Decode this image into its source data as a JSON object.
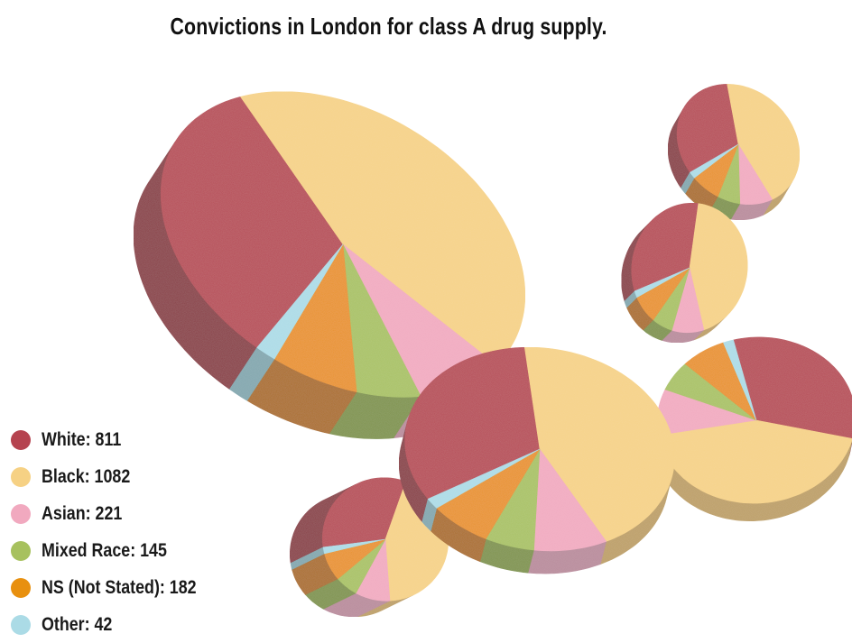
{
  "chart_data": {
    "type": "pie",
    "title": "Convictions in London for class A drug supply.",
    "style": "3d-pie",
    "legend_position": "bottom-left",
    "series": [
      {
        "name": "White",
        "label": "White: 811",
        "value": 811,
        "color": "#b5434f",
        "side_color": "#86303a"
      },
      {
        "name": "Black",
        "label": "Black: 1082",
        "value": 1082,
        "color": "#f6d184",
        "side_color": "#bc9d60"
      },
      {
        "name": "Asian",
        "label": "Asian: 221",
        "value": 221,
        "color": "#f1a9bf",
        "side_color": "#b8889a"
      },
      {
        "name": "Mixed Race",
        "label": "Mixed Race: 145",
        "value": 145,
        "color": "#a7c15e",
        "side_color": "#7b9143"
      },
      {
        "name": "NS (Not Stated)",
        "label": "NS (Not Stated): 182",
        "value": 182,
        "color": "#e8900f",
        "side_color": "#a9690d"
      },
      {
        "name": "Other",
        "label": "Other: 42",
        "value": 42,
        "color": "#abdbe6",
        "side_color": "#7fa5ad"
      }
    ],
    "pies": [
      {
        "name": "main",
        "values": [
          811,
          1082,
          221,
          145,
          182,
          42
        ]
      },
      {
        "name": "top-right",
        "values": [
          811,
          1082,
          221,
          145,
          182,
          42
        ]
      },
      {
        "name": "middle-right",
        "values": [
          811,
          1082,
          221,
          145,
          182,
          42
        ]
      },
      {
        "name": "center",
        "values": [
          811,
          1082,
          221,
          145,
          182,
          42
        ]
      },
      {
        "name": "right",
        "values": [
          811,
          1082,
          221,
          145,
          182,
          42
        ]
      },
      {
        "name": "bottom",
        "values": [
          811,
          1082,
          221,
          145,
          182,
          42
        ]
      }
    ]
  }
}
